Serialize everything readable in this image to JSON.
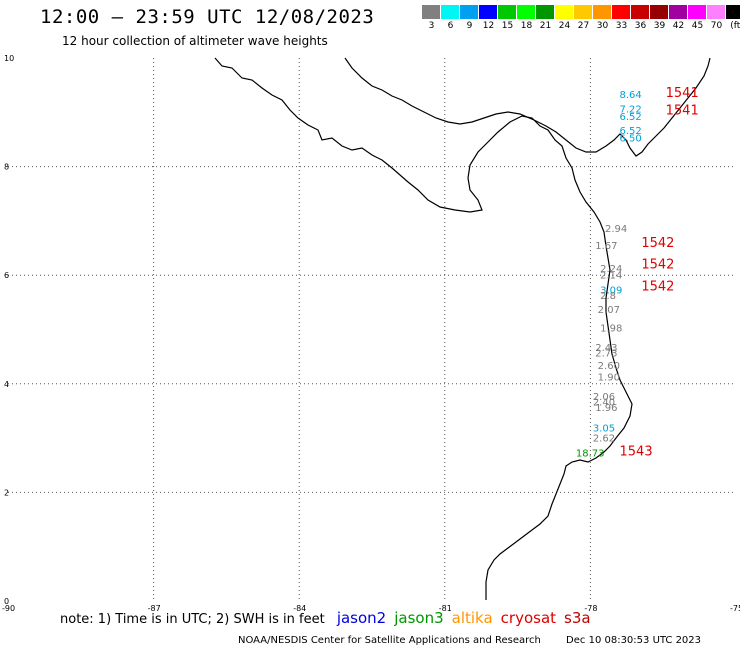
{
  "header": {
    "title": "12:00 – 23:59 UTC 12/08/2023",
    "subtitle": "12 hour collection of altimeter wave heights"
  },
  "legend": {
    "colors": [
      "#808080",
      "#00f5f5",
      "#00a0f0",
      "#0000ff",
      "#00c800",
      "#00ff00",
      "#009600",
      "#ffff00",
      "#ffc800",
      "#ff9600",
      "#ff0000",
      "#c80000",
      "#960000",
      "#a000a0",
      "#ff00ff",
      "#ff80ff",
      "#000000"
    ],
    "labels": [
      "3",
      "6",
      "9",
      "12",
      "15",
      "18",
      "21",
      "24",
      "27",
      "30",
      "33",
      "36",
      "39",
      "42",
      "45",
      "70",
      "(ft)"
    ]
  },
  "map": {
    "y_ticks": [
      "10",
      "8",
      "6",
      "4",
      "2",
      "0"
    ],
    "x_ticks": [
      "-90",
      "-87",
      "-84",
      "-81",
      "-78",
      "-75"
    ],
    "lon_range": [
      -90,
      -75
    ],
    "lat_range": [
      0,
      10
    ],
    "observations": [
      {
        "text": "8.64",
        "lon": -77.4,
        "lat": 9.26,
        "color": "#00a0d8"
      },
      {
        "text": "7.22",
        "lon": -77.4,
        "lat": 9.0,
        "color": "#00a0d8"
      },
      {
        "text": "6.52",
        "lon": -77.4,
        "lat": 8.86,
        "color": "#00a0d8"
      },
      {
        "text": "6.52",
        "lon": -77.4,
        "lat": 8.6,
        "color": "#00a0d8"
      },
      {
        "text": "6.50",
        "lon": -77.4,
        "lat": 8.46,
        "color": "#00a0d8"
      },
      {
        "text": "2.94",
        "lon": -77.7,
        "lat": 6.8,
        "color": "#7a7a7a"
      },
      {
        "text": "1.67",
        "lon": -77.9,
        "lat": 6.48,
        "color": "#7a7a7a"
      },
      {
        "text": "2.24",
        "lon": -77.8,
        "lat": 6.06,
        "color": "#7a7a7a"
      },
      {
        "text": "2.14",
        "lon": -77.8,
        "lat": 5.94,
        "color": "#7a7a7a"
      },
      {
        "text": "3.09",
        "lon": -77.8,
        "lat": 5.66,
        "color": "#00a0d8"
      },
      {
        "text": "2.8",
        "lon": -77.8,
        "lat": 5.56,
        "color": "#7a7a7a"
      },
      {
        "text": "2.07",
        "lon": -77.85,
        "lat": 5.3,
        "color": "#7a7a7a"
      },
      {
        "text": "1.98",
        "lon": -77.8,
        "lat": 4.96,
        "color": "#7a7a7a"
      },
      {
        "text": "2.43",
        "lon": -77.9,
        "lat": 4.6,
        "color": "#7a7a7a"
      },
      {
        "text": "2.73",
        "lon": -77.9,
        "lat": 4.5,
        "color": "#7a7a7a"
      },
      {
        "text": "2.60",
        "lon": -77.85,
        "lat": 4.27,
        "color": "#7a7a7a"
      },
      {
        "text": "1.90",
        "lon": -77.85,
        "lat": 4.06,
        "color": "#7a7a7a"
      },
      {
        "text": "2.06",
        "lon": -77.95,
        "lat": 3.7,
        "color": "#7a7a7a"
      },
      {
        "text": "2.40",
        "lon": -77.95,
        "lat": 3.6,
        "color": "#7a7a7a"
      },
      {
        "text": "1.96",
        "lon": -77.9,
        "lat": 3.5,
        "color": "#7a7a7a"
      },
      {
        "text": "3.05",
        "lon": -77.95,
        "lat": 3.12,
        "color": "#00a0d8"
      },
      {
        "text": "2.62",
        "lon": -77.95,
        "lat": 2.94,
        "color": "#7a7a7a"
      },
      {
        "text": "18.73",
        "lon": -78.3,
        "lat": 2.66,
        "color": "#009600"
      }
    ],
    "pass_labels": [
      {
        "text": "1541",
        "lon": -76.45,
        "lat": 9.28
      },
      {
        "text": "1541",
        "lon": -76.45,
        "lat": 8.96
      },
      {
        "text": "1542",
        "lon": -76.95,
        "lat": 6.52
      },
      {
        "text": "1542",
        "lon": -76.95,
        "lat": 6.12
      },
      {
        "text": "1542",
        "lon": -76.95,
        "lat": 5.72
      },
      {
        "text": "1543",
        "lon": -77.4,
        "lat": 2.68
      }
    ]
  },
  "footer": {
    "note": "note: 1) Time is in UTC; 2) SWH is in feet",
    "satellites": [
      {
        "name": "jason2",
        "color": "#0000e0"
      },
      {
        "name": "jason3",
        "color": "#009600"
      },
      {
        "name": "altika",
        "color": "#ff9600"
      },
      {
        "name": "cryosat",
        "color": "#e00000"
      },
      {
        "name": "s3a",
        "color": "#c00000"
      }
    ],
    "credit": "NOAA/NESDIS Center for Satellite Applications and Research",
    "timestamp": "Dec 10 08:30:53 UTC 2023"
  }
}
